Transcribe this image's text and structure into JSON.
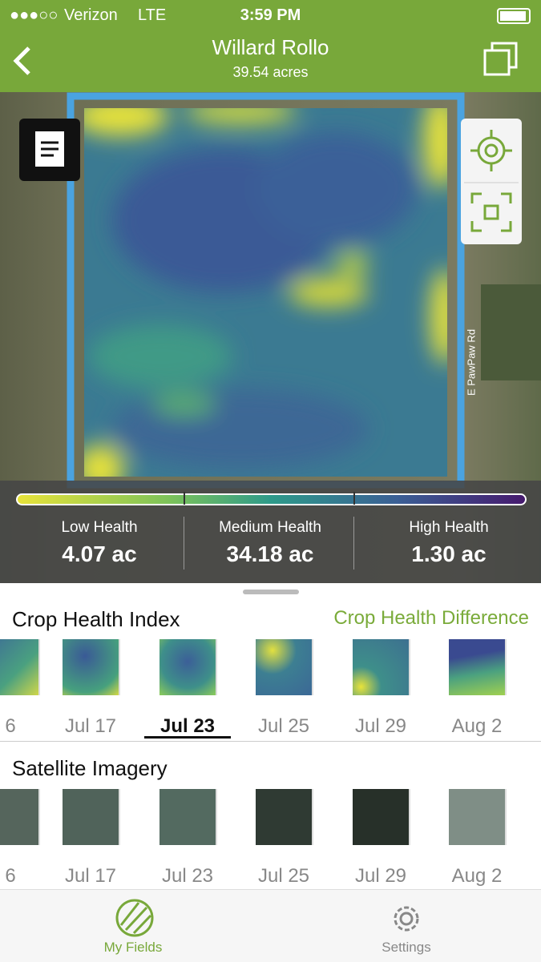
{
  "status_bar": {
    "carrier": "Verizon",
    "network": "LTE",
    "time": "3:59 PM"
  },
  "header": {
    "title": "Willard Rollo",
    "subtitle": "39.54 acres"
  },
  "map": {
    "road_label": "E PawPaw Rd"
  },
  "health_legend": [
    {
      "label": "Low Health",
      "value": "4.07 ac"
    },
    {
      "label": "Medium Health",
      "value": "34.18 ac"
    },
    {
      "label": "High Health",
      "value": "1.30 ac"
    }
  ],
  "crop_health": {
    "title": "Crop Health Index",
    "link": "Crop Health Difference",
    "dates": [
      "6",
      "Jul 17",
      "Jul 23",
      "Jul 25",
      "Jul 29",
      "Aug 2"
    ]
  },
  "satellite": {
    "title": "Satellite Imagery",
    "dates": [
      "6",
      "Jul 17",
      "Jul 23",
      "Jul 25",
      "Jul 29",
      "Aug 2"
    ]
  },
  "tab_bar": {
    "tabs": [
      "My Fields",
      "Settings"
    ]
  }
}
